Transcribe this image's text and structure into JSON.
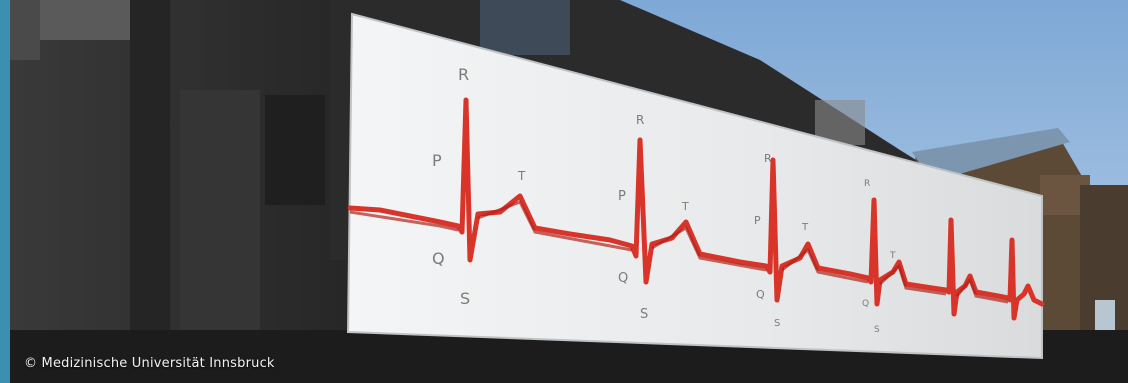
{
  "caption": "© Medizinische Universität Innsbruck",
  "colors": {
    "accent_bar": "#3b8fb3",
    "sky": "#8fb3d9",
    "panel": "#eceeef",
    "ecg_line": "#d8342a",
    "letters": "#7b7b7b",
    "building_dark": "#2f2f2f",
    "roof_blue": "#6f8fb0"
  },
  "wall_letters": [
    "R",
    "P",
    "T",
    "Q",
    "S",
    "R",
    "P",
    "T",
    "Q",
    "S",
    "R",
    "P",
    "T",
    "Q",
    "S",
    "R",
    "T",
    "Q",
    "S"
  ]
}
